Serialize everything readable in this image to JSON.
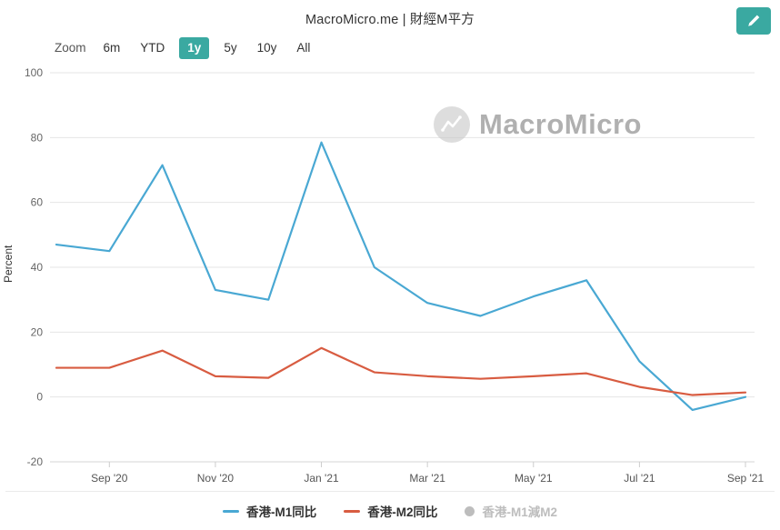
{
  "header": {
    "title": "MacroMicro.me | 財經M平方"
  },
  "toolbar": {
    "zoom_label": "Zoom",
    "ranges": [
      {
        "label": "6m",
        "selected": false
      },
      {
        "label": "YTD",
        "selected": false
      },
      {
        "label": "1y",
        "selected": true
      },
      {
        "label": "5y",
        "selected": false
      },
      {
        "label": "10y",
        "selected": false
      },
      {
        "label": "All",
        "selected": false
      }
    ]
  },
  "watermark": {
    "text": "MacroMicro"
  },
  "colors": {
    "accent_teal": "#3aa9a1",
    "grid": "#e6e6e6",
    "axis_text": "#666666",
    "m1_blue": "#49a8d3",
    "m2_red": "#d85c41",
    "disabled_gray": "#bdbdbd"
  },
  "chart_data": {
    "type": "line",
    "title": "",
    "xlabel": "",
    "ylabel": "Percent",
    "ylim": [
      -20,
      100
    ],
    "yticks": [
      100,
      80,
      60,
      40,
      20,
      0,
      -20
    ],
    "grid": true,
    "legend_position": "bottom",
    "x": [
      "Aug '20",
      "Sep '20",
      "Oct '20",
      "Nov '20",
      "Dec '20",
      "Jan '21",
      "Feb '21",
      "Mar '21",
      "Apr '21",
      "May '21",
      "Jun '21",
      "Jul '21",
      "Aug '21",
      "Sep '21"
    ],
    "x_labels": [
      "Sep '20",
      "Nov '20",
      "Jan '21",
      "Mar '21",
      "May '21",
      "Jul '21",
      "Sep '21"
    ],
    "x_label_indices": [
      1,
      3,
      5,
      7,
      9,
      11,
      13
    ],
    "series": [
      {
        "id": "hk-m1-yoy",
        "name": "香港-M1同比",
        "color": "#49a8d3",
        "hidden": false,
        "values": [
          47,
          45,
          71.5,
          33,
          30,
          78.5,
          40,
          29,
          25,
          31,
          36,
          11,
          -4,
          0
        ]
      },
      {
        "id": "hk-m2-yoy",
        "name": "香港-M2同比",
        "color": "#d85c41",
        "hidden": false,
        "values": [
          9,
          9,
          14.3,
          6.4,
          5.9,
          15.1,
          7.6,
          6.4,
          5.6,
          6.4,
          7.3,
          3.1,
          0.6,
          1.4
        ]
      },
      {
        "id": "hk-m1-minus-m2",
        "name": "香港-M1減M2",
        "color": "#bdbdbd",
        "hidden": true,
        "values": []
      }
    ]
  }
}
